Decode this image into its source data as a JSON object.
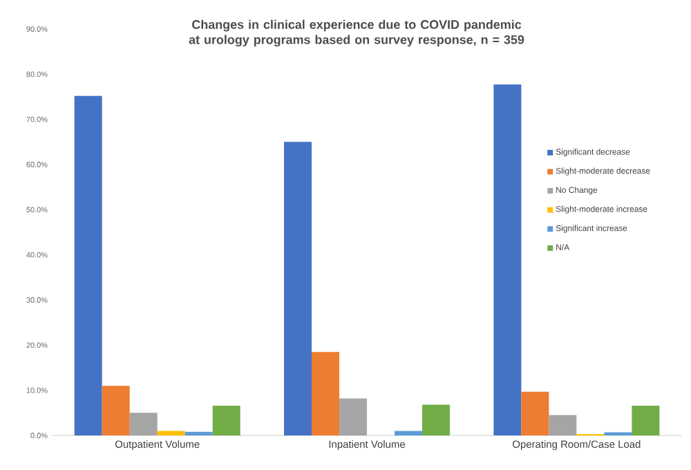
{
  "chart_data": {
    "type": "bar",
    "title": "Changes in clinical experience due to COVID pandemic at urology programs based on survey response,  n = 359",
    "categories": [
      "Outpatient Volume",
      "Inpatient Volume",
      "Operating Room/Case Load"
    ],
    "series": [
      {
        "name": "Significant decrease",
        "color": "#4472c4",
        "values": [
          75.2,
          65.0,
          77.7
        ]
      },
      {
        "name": "Slight-moderate decrease",
        "color": "#ed7d31",
        "values": [
          11.0,
          18.5,
          9.7
        ]
      },
      {
        "name": "No Change",
        "color": "#a5a5a5",
        "values": [
          5.0,
          8.2,
          4.5
        ]
      },
      {
        "name": "Slight-moderate increase",
        "color": "#ffc000",
        "values": [
          1.0,
          0.0,
          0.3
        ]
      },
      {
        "name": "Significant increase",
        "color": "#5b9bd5",
        "values": [
          0.8,
          1.0,
          0.7
        ]
      },
      {
        "name": "N/A",
        "color": "#70ad47",
        "values": [
          6.6,
          6.8,
          6.6
        ]
      }
    ],
    "ylim": [
      0,
      90
    ],
    "yticks": [
      {
        "value": 0,
        "label": "0.0%"
      },
      {
        "value": 10,
        "label": "10.0%"
      },
      {
        "value": 20,
        "label": "20.0%"
      },
      {
        "value": 30,
        "label": "30.0%"
      },
      {
        "value": 40,
        "label": "40.0%"
      },
      {
        "value": 50,
        "label": "50.0%"
      },
      {
        "value": 60,
        "label": "60.0%"
      },
      {
        "value": 70,
        "label": "70.0%"
      },
      {
        "value": 80,
        "label": "80.0%"
      },
      {
        "value": 90,
        "label": "90.0%"
      }
    ],
    "grid": false,
    "legend": "right"
  }
}
